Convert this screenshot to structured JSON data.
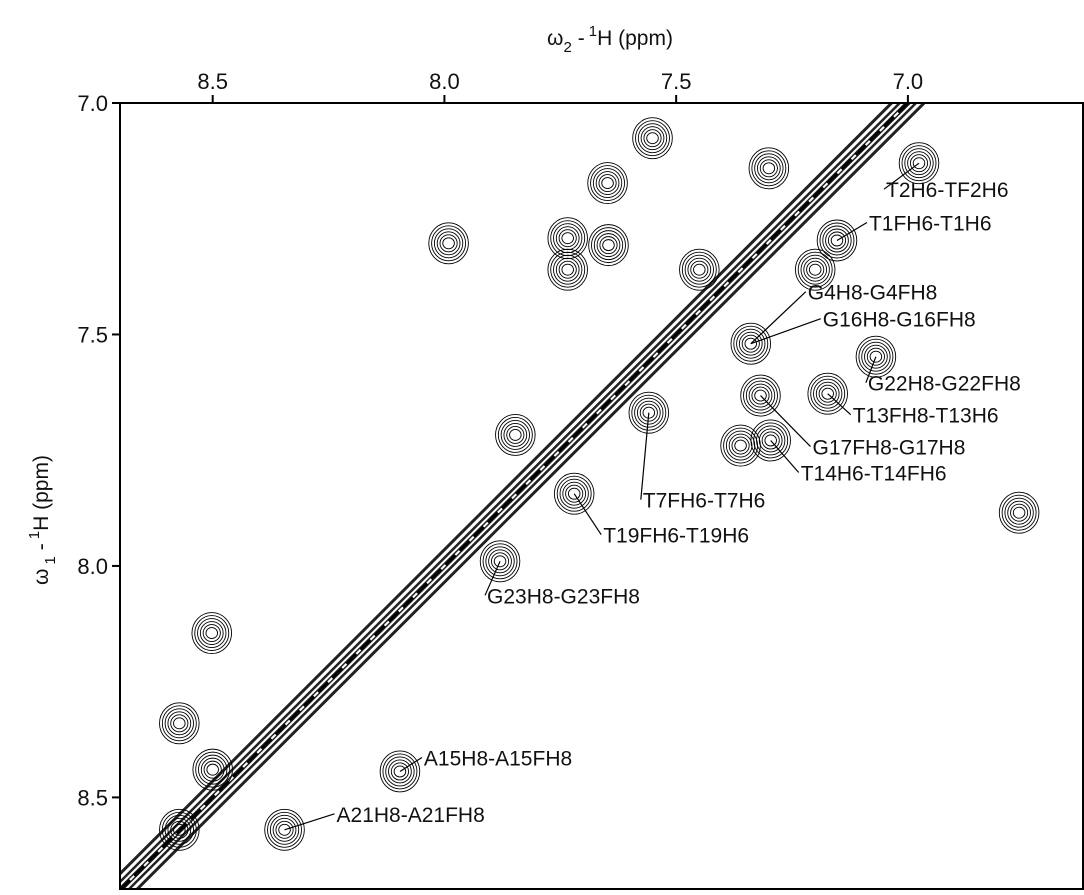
{
  "chart_data": {
    "type": "nmr-2d",
    "x_label_parts": [
      "ω",
      "2",
      "-",
      "1",
      "H  (ppm)"
    ],
    "y_label_parts": [
      "ω",
      "1",
      "-",
      "1",
      "H  (ppm)"
    ],
    "xlim": [
      8.7,
      6.62
    ],
    "ylim": [
      7.0,
      8.7
    ],
    "xticks": [
      {
        "value": 8.5,
        "label": "8.5"
      },
      {
        "value": 8.0,
        "label": "8.0"
      },
      {
        "value": 7.5,
        "label": "7.5"
      },
      {
        "value": 7.0,
        "label": "7.0"
      }
    ],
    "yticks": [
      {
        "value": 7.0,
        "label": "7.0"
      },
      {
        "value": 7.5,
        "label": "7.5"
      },
      {
        "value": 8.0,
        "label": "8.0"
      },
      {
        "value": 8.5,
        "label": "8.5"
      }
    ],
    "peaks": {
      "x": [
        6.976,
        7.153,
        7.339,
        7.339,
        7.069,
        7.173,
        7.318,
        7.296,
        7.559,
        7.72,
        7.88,
        8.096,
        8.345,
        7.551,
        7.648,
        7.991,
        7.734,
        7.734,
        7.646,
        7.3,
        8.502,
        8.572,
        8.572,
        8.5,
        7.847,
        7.361,
        6.76,
        7.45,
        7.2
      ],
      "y": [
        7.13,
        7.297,
        7.52,
        7.52,
        7.548,
        7.628,
        7.632,
        7.729,
        7.669,
        7.844,
        7.99,
        8.444,
        8.57,
        7.076,
        7.173,
        7.303,
        7.292,
        7.36,
        7.307,
        7.141,
        8.145,
        8.34,
        8.57,
        8.44,
        7.717,
        7.74,
        7.885,
        7.36,
        7.36
      ],
      "labels": [
        "T2H6-TF2H6",
        "T1FH6-T1H6",
        "G4H8-G4FH8",
        "G16H8-G16FH8",
        "G22H8-G22FH8",
        "T13FH8-T13H6",
        "G17FH8-G17H8",
        "T14H6-T14FH6",
        "T7FH6-T7H6",
        "T19FH6-T19H6",
        "G23H8-G23FH8",
        "A15H8-A15FH8",
        "A21H8-A21FH8",
        null,
        null,
        null,
        null,
        null,
        null,
        null,
        null,
        null,
        null,
        null,
        null,
        null,
        null,
        null,
        null
      ]
    }
  }
}
